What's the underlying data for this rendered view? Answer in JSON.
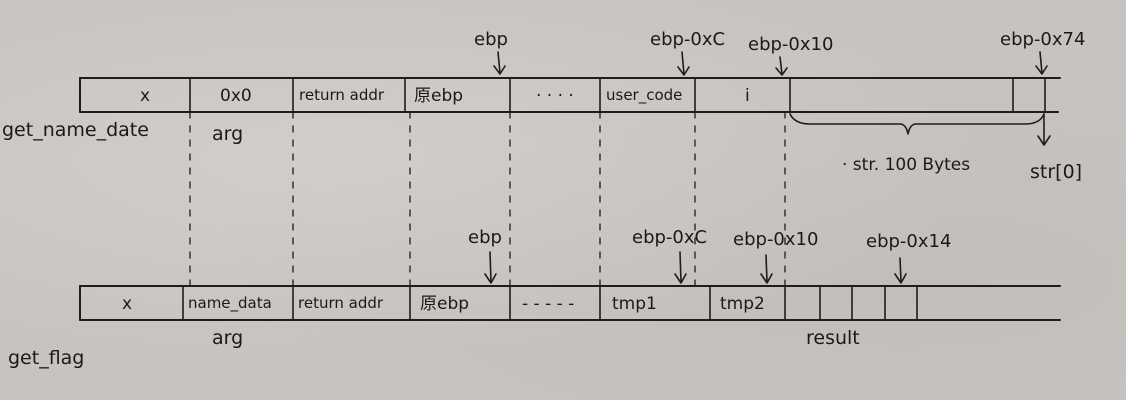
{
  "frame_top": {
    "function_label": "get_name_date",
    "cells": [
      "x",
      "0x0",
      "return addr",
      "原ebp",
      "· · · ·",
      "user_code",
      "i",
      "",
      "",
      ""
    ],
    "arg_label": "arg",
    "pointers": [
      "ebp",
      "ebp-0xC",
      "ebp-0x10",
      "ebp-0x74"
    ],
    "brace_label": "· str. 100 Bytes",
    "str0_label": "str[0]"
  },
  "frame_bottom": {
    "function_label": "get_flag",
    "cells": [
      "x",
      "name_data",
      "return addr",
      "原ebp",
      "- - - - -",
      "tmp1",
      "tmp2",
      "",
      "",
      "",
      ""
    ],
    "arg_label": "arg",
    "pointers": [
      "ebp",
      "ebp-0xC",
      "ebp-0x10",
      "ebp-0x14"
    ],
    "result_label": "result"
  },
  "colors": {
    "paper": "#c7c3c0",
    "ink": "#1d1d1f"
  }
}
